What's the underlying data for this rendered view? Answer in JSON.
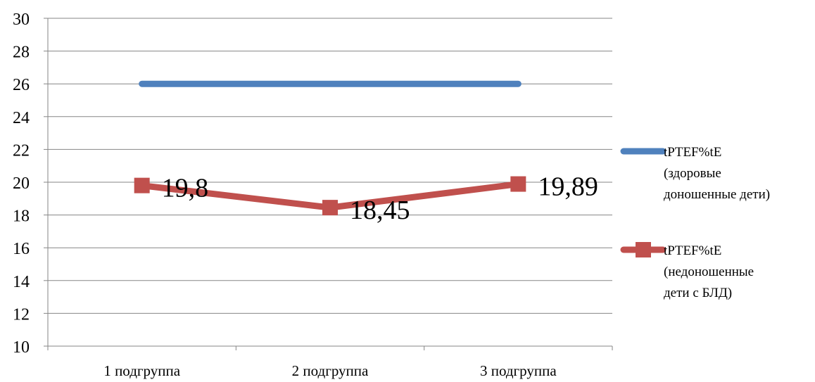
{
  "chart_data": {
    "type": "line",
    "categories": [
      "1 подгруппа",
      "2 подгруппа",
      "3 подгруппа"
    ],
    "series": [
      {
        "name": "tPTEF%tE (здоровые доношенные дети)",
        "legend_lines": [
          "tPTEF%tE",
          "(здоровые",
          "доношенные дети)"
        ],
        "values": [
          26,
          26,
          26
        ],
        "color": "#4F81BD",
        "marker": "none",
        "data_labels": false
      },
      {
        "name": "tPTEF%tE (недоношенные дети с БЛД)",
        "legend_lines": [
          "tPTEF%tE",
          "(недоношенные",
          "дети с БЛД)"
        ],
        "values": [
          19.8,
          18.45,
          19.89
        ],
        "value_labels": [
          "19,8",
          "18,45",
          "19,89"
        ],
        "color": "#C0504D",
        "marker": "square",
        "data_labels": true
      }
    ],
    "ylim": [
      10,
      30
    ],
    "yticks": [
      "10",
      "12",
      "14",
      "16",
      "18",
      "20",
      "22",
      "24",
      "26",
      "28",
      "30"
    ],
    "title": "",
    "xlabel": "",
    "ylabel": "",
    "grid": "horizontal",
    "legend_position": "right"
  }
}
